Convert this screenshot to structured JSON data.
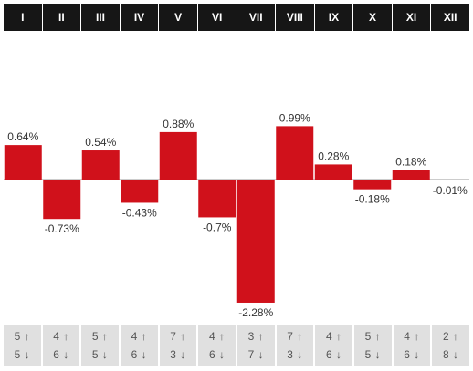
{
  "months": [
    "I",
    "II",
    "III",
    "IV",
    "V",
    "VI",
    "VII",
    "VIII",
    "IX",
    "X",
    "XI",
    "XII"
  ],
  "counts": [
    {
      "up": "5 ↑",
      "down": "5 ↓"
    },
    {
      "up": "4 ↑",
      "down": "6 ↓"
    },
    {
      "up": "5 ↑",
      "down": "5 ↓"
    },
    {
      "up": "4 ↑",
      "down": "6 ↓"
    },
    {
      "up": "7 ↑",
      "down": "3 ↓"
    },
    {
      "up": "4 ↑",
      "down": "6 ↓"
    },
    {
      "up": "3 ↑",
      "down": "7 ↓"
    },
    {
      "up": "7 ↑",
      "down": "3 ↓"
    },
    {
      "up": "4 ↑",
      "down": "6 ↓"
    },
    {
      "up": "5 ↑",
      "down": "5 ↓"
    },
    {
      "up": "4 ↑",
      "down": "6 ↓"
    },
    {
      "up": "2 ↑",
      "down": "8 ↓"
    }
  ],
  "chart_data": {
    "type": "bar",
    "categories": [
      "I",
      "II",
      "III",
      "IV",
      "V",
      "VI",
      "VII",
      "VIII",
      "IX",
      "X",
      "XI",
      "XII"
    ],
    "values": [
      0.64,
      -0.73,
      0.54,
      -0.43,
      0.88,
      -0.7,
      -2.28,
      0.99,
      0.28,
      -0.18,
      0.18,
      -0.01
    ],
    "labels": [
      "0.64%",
      "-0.73%",
      "0.54%",
      "-0.43%",
      "0.88%",
      "-0.7%",
      "-2.28%",
      "0.99%",
      "0.28%",
      "-0.18%",
      "0.18%",
      "-0.01%"
    ],
    "bar_color": "#d0111b",
    "baseline_color": "#999999",
    "grid": false
  }
}
